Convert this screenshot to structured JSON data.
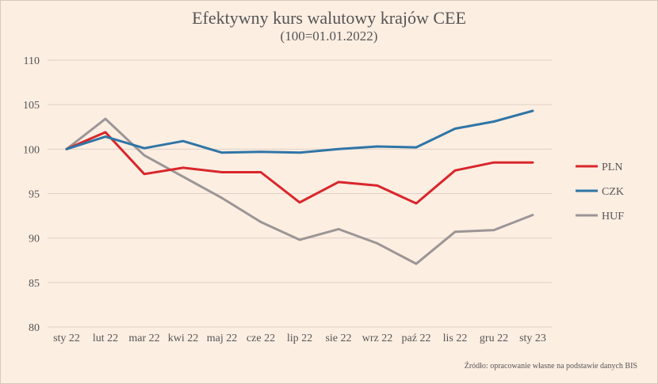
{
  "chart_data": {
    "type": "line",
    "title": "Efektywny kurs walutowy krajów CEE",
    "subtitle": "(100=01.01.2022)",
    "categories": [
      "sty 22",
      "lut 22",
      "mar 22",
      "kwi 22",
      "maj 22",
      "cze 22",
      "lip 22",
      "sie 22",
      "wrz 22",
      "paź 22",
      "lis 22",
      "gru 22",
      "sty 23"
    ],
    "ylim": [
      80,
      110
    ],
    "yticks": [
      80,
      85,
      90,
      95,
      100,
      105,
      110
    ],
    "grid": true,
    "legend_position": "right",
    "series": [
      {
        "name": "PLN",
        "color": "#d9262b",
        "values": [
          100,
          101.9,
          97.2,
          97.9,
          97.4,
          97.4,
          94.0,
          96.3,
          95.9,
          93.9,
          97.6,
          98.5,
          98.5
        ]
      },
      {
        "name": "CZK",
        "color": "#2f75a6",
        "values": [
          100,
          101.4,
          100.1,
          100.9,
          99.6,
          99.7,
          99.6,
          100.0,
          100.3,
          100.2,
          102.3,
          103.1,
          104.3
        ]
      },
      {
        "name": "HUF",
        "color": "#9b9696",
        "values": [
          100,
          103.4,
          99.3,
          96.9,
          94.5,
          91.8,
          89.8,
          91.0,
          89.4,
          87.1,
          90.7,
          90.9,
          92.6
        ]
      }
    ],
    "source": "Źródło: opracowanie własne na podstawie danych BIS"
  }
}
